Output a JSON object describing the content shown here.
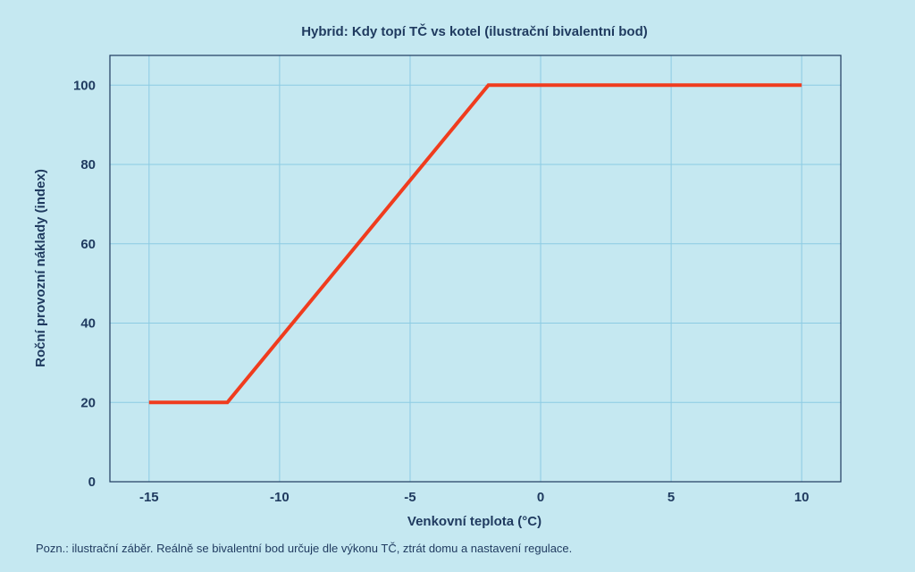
{
  "chart_data": {
    "type": "line",
    "title": "Hybrid: Kdy topí TČ vs kotel (ilustrační bivalentní bod)",
    "xlabel": "Venkovní teplota (°C)",
    "ylabel": "Roční provozní náklady (index)",
    "xlim": [
      -16.5,
      11.5
    ],
    "ylim": [
      0,
      107.5
    ],
    "x_ticks": [
      -15,
      -10,
      -5,
      0,
      5,
      10
    ],
    "y_ticks": [
      0,
      20,
      40,
      60,
      80,
      100
    ],
    "grid": true,
    "series": [
      {
        "color": "#f03c1e",
        "points": [
          {
            "x": -15,
            "y": 20
          },
          {
            "x": -12,
            "y": 20
          },
          {
            "x": -2,
            "y": 100
          },
          {
            "x": 10,
            "y": 100
          }
        ]
      }
    ],
    "note": "Pozn.: ilustrační záběr. Reálně se bivalentní bod určuje dle výkonu TČ, ztrát domu a nastavení regulace."
  },
  "colors": {
    "background": "#c5e8f1",
    "text": "#1f3a5f",
    "grid": "#8ccbe3",
    "line": "#f03c1e"
  }
}
